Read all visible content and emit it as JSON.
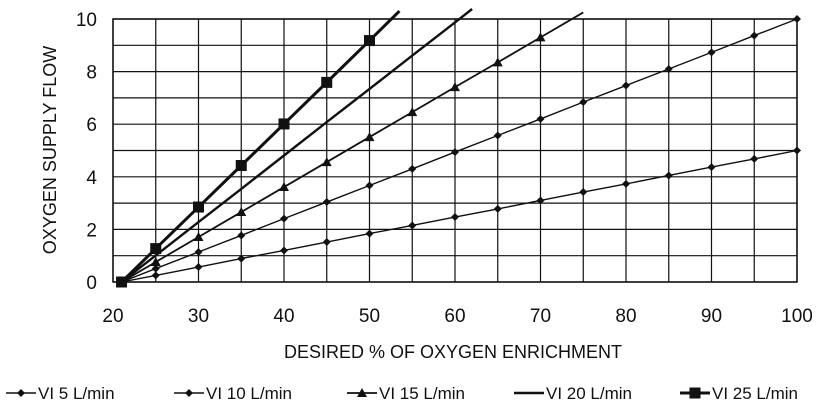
{
  "chart_data": {
    "type": "line",
    "title": "",
    "xlabel": "DESIRED % OF OXYGEN ENRICHMENT",
    "ylabel": "OXYGEN SUPPLY FLOW",
    "xlim": [
      20,
      100
    ],
    "ylim": [
      0,
      10
    ],
    "x_ticks": [
      "20",
      "30",
      "40",
      "50",
      "60",
      "70",
      "80",
      "90",
      "100"
    ],
    "y_ticks": [
      "0",
      "2",
      "4",
      "6",
      "8",
      "10"
    ],
    "grid": true,
    "legend_position": "bottom",
    "series": [
      {
        "name": "VI 5 L/min",
        "marker": "diamond",
        "x": [
          21,
          25,
          30,
          35,
          40,
          45,
          50,
          55,
          60,
          65,
          70,
          75,
          80,
          85,
          90,
          95,
          100
        ],
        "y": [
          0,
          0.25,
          0.57,
          0.89,
          1.2,
          1.52,
          1.84,
          2.15,
          2.47,
          2.78,
          3.1,
          3.42,
          3.73,
          4.05,
          4.37,
          4.68,
          5.0
        ]
      },
      {
        "name": "VI 10 L/min",
        "marker": "diamond",
        "x": [
          21,
          25,
          30,
          35,
          40,
          45,
          50,
          55,
          60,
          65,
          70,
          75,
          80,
          85,
          90,
          95,
          100
        ],
        "y": [
          0,
          0.51,
          1.14,
          1.77,
          2.41,
          3.04,
          3.67,
          4.3,
          4.94,
          5.57,
          6.2,
          6.84,
          7.47,
          8.1,
          8.73,
          9.37,
          10.0
        ]
      },
      {
        "name": "VI 15 L/min",
        "marker": "triangle",
        "x": [
          21,
          25,
          30,
          35,
          40,
          45,
          50,
          55,
          60,
          65,
          70,
          75
        ],
        "y": [
          0,
          0.76,
          1.71,
          2.66,
          3.61,
          4.56,
          5.51,
          6.46,
          7.41,
          8.35,
          9.3,
          10.25
        ]
      },
      {
        "name": "VI 20 L/min",
        "marker": "none",
        "x": [
          21,
          25,
          30,
          35,
          40,
          45,
          50,
          55,
          60,
          62
        ],
        "y": [
          0,
          1.01,
          2.28,
          3.54,
          4.81,
          6.08,
          7.34,
          8.61,
          9.87,
          10.38
        ]
      },
      {
        "name": "VI 25 L/min",
        "marker": "square",
        "x": [
          21,
          25,
          30,
          35,
          40,
          45,
          50,
          53.5
        ],
        "y": [
          0,
          1.27,
          2.85,
          4.43,
          6.01,
          7.59,
          9.18,
          10.3
        ]
      }
    ]
  }
}
